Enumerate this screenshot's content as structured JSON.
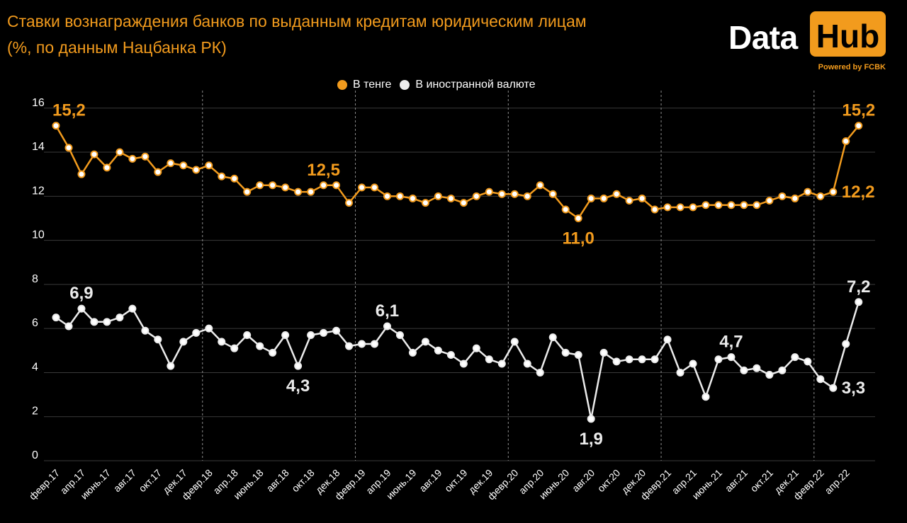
{
  "title_line1": "Ставки вознаграждения банков по выданным кредитам юридическим лицам",
  "title_line2": "(%, по данным Нацбанка РК)",
  "logo": {
    "word1": "Data",
    "word2": "Hub",
    "tagline": "Powered by FCBK"
  },
  "colors": {
    "kzt": "#f29b1d",
    "fx": "#ebebeb",
    "grid": "#3a3a3a",
    "divider": "#8a8a8a"
  },
  "chart_data": {
    "type": "line",
    "y_ticks": [
      0,
      2,
      4,
      6,
      8,
      10,
      12,
      14,
      16
    ],
    "ylim": [
      0,
      16
    ],
    "x_tick_labels": [
      "февр.17",
      "апр.17",
      "июнь.17",
      "авг.17",
      "окт.17",
      "дек.17",
      "февр.18",
      "апр.18",
      "июнь.18",
      "авг.18",
      "окт.18",
      "дек.18",
      "февр.19",
      "апр.19",
      "июнь.19",
      "авг.19",
      "окт.19",
      "дек.19",
      "февр.20",
      "апр.20",
      "июнь.20",
      "авг.20",
      "окт.20",
      "дек.20",
      "февр.21",
      "апр.21",
      "июнь.21",
      "авг.21",
      "окт.21",
      "дек.21",
      "февр.22",
      "апр.22"
    ],
    "year_boundaries_after_month_index": [
      11,
      23,
      35,
      47,
      59
    ],
    "legend_position": "top-center",
    "series": [
      {
        "name": "В тенге",
        "color_key": "kzt",
        "values": [
          15.2,
          14.2,
          13.0,
          13.9,
          13.3,
          14.0,
          13.7,
          13.8,
          13.1,
          13.5,
          13.4,
          13.2,
          13.4,
          12.9,
          12.8,
          12.2,
          12.5,
          12.5,
          12.4,
          12.2,
          12.2,
          12.5,
          12.5,
          11.7,
          12.4,
          12.4,
          12.0,
          12.0,
          11.9,
          11.7,
          12.0,
          11.9,
          11.7,
          12.0,
          12.2,
          12.1,
          12.1,
          12.0,
          12.5,
          12.1,
          11.4,
          11.0,
          11.9,
          11.9,
          12.1,
          11.8,
          11.9,
          11.4,
          11.5,
          11.5,
          11.5,
          11.6,
          11.6,
          11.6,
          11.6,
          11.6,
          11.8,
          12.0,
          11.9,
          12.2,
          12.0,
          12.2,
          14.5,
          15.2
        ],
        "labels": [
          {
            "index": 0,
            "text": "15,2",
            "pos": "above"
          },
          {
            "index": 21,
            "text": "12,5",
            "pos": "above"
          },
          {
            "index": 41,
            "text": "11,0",
            "pos": "below"
          },
          {
            "index": 61,
            "text": "12,2",
            "pos": "right"
          },
          {
            "index": 63,
            "text": "15,2",
            "pos": "above"
          }
        ]
      },
      {
        "name": "В иностранной валюте",
        "color_key": "fx",
        "values": [
          6.5,
          6.1,
          6.9,
          6.3,
          6.3,
          6.5,
          6.9,
          5.9,
          5.5,
          4.3,
          5.4,
          5.8,
          6.0,
          5.4,
          5.1,
          5.7,
          5.2,
          4.9,
          5.7,
          4.3,
          5.7,
          5.8,
          5.9,
          5.2,
          5.3,
          5.3,
          6.1,
          5.7,
          4.9,
          5.4,
          5.0,
          4.8,
          4.4,
          5.1,
          4.6,
          4.4,
          5.4,
          4.4,
          4.0,
          5.6,
          4.9,
          4.8,
          1.9,
          4.9,
          4.5,
          4.6,
          4.6,
          4.6,
          5.5,
          4.0,
          4.4,
          2.9,
          4.6,
          4.7,
          4.1,
          4.2,
          3.9,
          4.1,
          4.7,
          4.5,
          3.7,
          3.3,
          5.3,
          7.2
        ],
        "labels": [
          {
            "index": 2,
            "text": "6,9",
            "pos": "above"
          },
          {
            "index": 19,
            "text": "4,3",
            "pos": "below"
          },
          {
            "index": 26,
            "text": "6,1",
            "pos": "above"
          },
          {
            "index": 42,
            "text": "1,9",
            "pos": "below"
          },
          {
            "index": 53,
            "text": "4,7",
            "pos": "above"
          },
          {
            "index": 61,
            "text": "3,3",
            "pos": "right"
          },
          {
            "index": 63,
            "text": "7,2",
            "pos": "above"
          }
        ]
      }
    ]
  }
}
